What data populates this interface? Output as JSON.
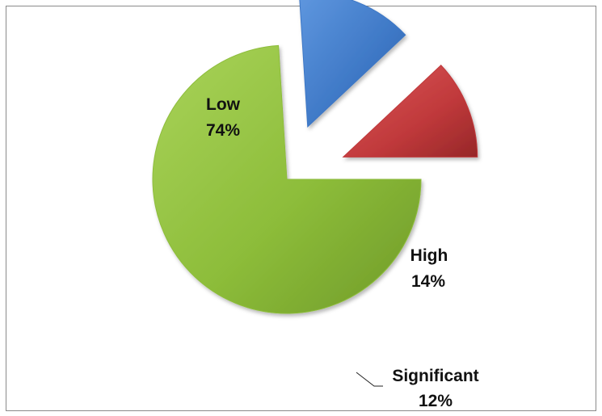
{
  "chart_data": {
    "type": "pie",
    "title": "",
    "exploded": true,
    "slices": [
      {
        "category": "Low",
        "value": 74,
        "value_label": "74%",
        "color": "#8dbd3a"
      },
      {
        "category": "High",
        "value": 14,
        "value_label": "14%",
        "color": "#3d77c5"
      },
      {
        "category": "Significant",
        "value": 12,
        "value_label": "12%",
        "color": "#c0393b"
      }
    ],
    "legend": "none"
  }
}
